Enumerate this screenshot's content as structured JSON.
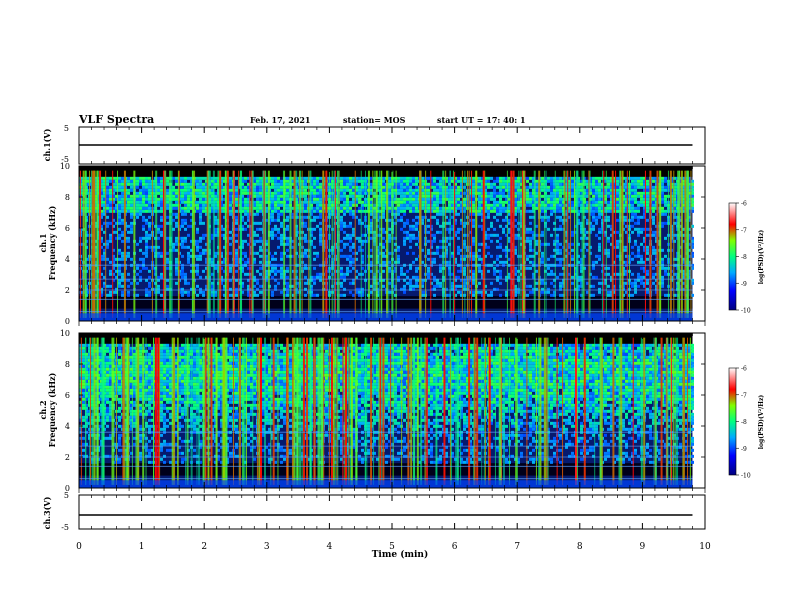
{
  "header": {
    "title": "VLF Spectra",
    "date": "Feb. 17, 2021",
    "station": "station= MOS",
    "start_ut": "start  UT =   17: 40: 1"
  },
  "chart_data": [
    {
      "type": "line",
      "name": "ch1-waveform",
      "ylabel": "ch.1(V)",
      "ylim": [
        -5,
        5
      ],
      "yticks": [
        "5",
        "-5"
      ],
      "x": [
        0,
        10
      ],
      "values": [
        0,
        0
      ]
    },
    {
      "type": "heatmap",
      "name": "ch1-spectrogram",
      "ylabel": "Frequency (kHz)",
      "channel_label": "ch.1",
      "ylim": [
        0,
        10
      ],
      "yticks": [
        "0",
        "2",
        "4",
        "6",
        "8",
        "10"
      ],
      "xlim": [
        0,
        10
      ],
      "colorbar": {
        "label": "log(PSD)(V²/Hz)",
        "range": [
          -10,
          -6
        ],
        "ticks": [
          "-6",
          "-7",
          "-8",
          "-9",
          "-10"
        ]
      }
    },
    {
      "type": "heatmap",
      "name": "ch2-spectrogram",
      "ylabel": "Frequency (kHz)",
      "channel_label": "ch.2",
      "ylim": [
        0,
        10
      ],
      "yticks": [
        "0",
        "2",
        "4",
        "6",
        "8",
        "10"
      ],
      "xlim": [
        0,
        10
      ],
      "colorbar": {
        "label": "log(PSD)(V²/Hz)",
        "range": [
          -10,
          -6
        ],
        "ticks": [
          "-6",
          "-7",
          "-8",
          "-9",
          "-10"
        ]
      }
    },
    {
      "type": "line",
      "name": "ch3-waveform",
      "ylabel": "ch.3(V)",
      "ylim": [
        -5,
        5
      ],
      "yticks": [
        "5",
        "-5"
      ],
      "x": [
        0,
        10
      ],
      "values": [
        -1,
        -1
      ]
    }
  ],
  "xaxis": {
    "label": "Time  (min)",
    "ticks": [
      "0",
      "1",
      "2",
      "3",
      "4",
      "5",
      "6",
      "7",
      "8",
      "9",
      "10"
    ],
    "range": [
      0,
      10
    ]
  }
}
